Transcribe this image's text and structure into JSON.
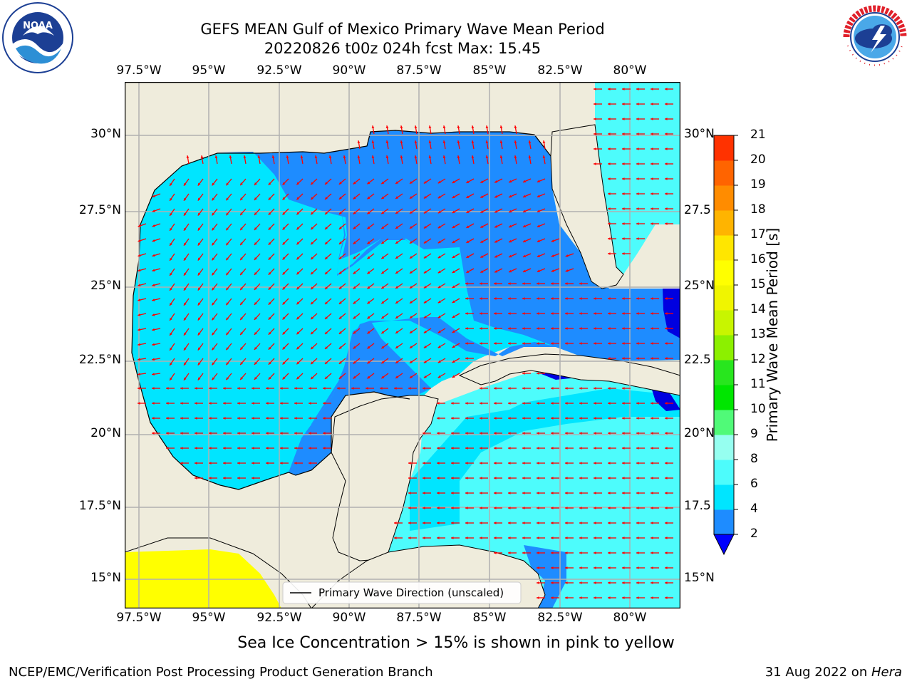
{
  "header": {
    "title_line1": "GEFS MEAN Gulf of Mexico Primary Wave Mean Period",
    "title_line2": "20220826 t00z 024h fcst   Max: 15.45"
  },
  "logos": {
    "noaa_text": "NOAA",
    "noaa_ring": "NATIONAL OCEANIC AND ATMOSPHERIC ADMINISTRATION · U.S. DEPARTMENT OF COMMERCE",
    "nws_ring": "NATIONAL WEATHER SERVICE"
  },
  "map": {
    "lon_labels": [
      "97.5°W",
      "95°W",
      "92.5°W",
      "90°W",
      "87.5°W",
      "85°W",
      "82.5°W",
      "80°W"
    ],
    "lat_labels_left": [
      "30°N",
      "27.5°N",
      "25°N",
      "22.5°N",
      "20°N",
      "17.5°N",
      "15°N"
    ],
    "lat_labels_right": [
      "30°N",
      "27.5",
      "25°N",
      "22.5",
      "20°N",
      "17.5",
      "15°N"
    ],
    "legend_label": "Primary Wave Direction (unscaled)",
    "colors": {
      "land": "#efecdc",
      "ocean_2_4": "#1e8cff",
      "ocean_4_6": "#00e5ff",
      "ocean_6_8": "#4dfcfc",
      "ocean_lt2": "#0000e0",
      "ice": "#ffff00",
      "arrow": "#ff0000",
      "grid": "#b0b0b0"
    }
  },
  "colorbar": {
    "label": "Primary Wave Mean Period [s]",
    "ticks": [
      "2",
      "4",
      "6",
      "8",
      "9",
      "10",
      "11",
      "12",
      "13",
      "14",
      "15",
      "16",
      "17",
      "18",
      "19",
      "20",
      "21"
    ],
    "colors": [
      "#1e8cff",
      "#00e5ff",
      "#4dfcfc",
      "#96fff0",
      "#50fa78",
      "#00e600",
      "#28e61e",
      "#8cf000",
      "#c8f500",
      "#f0f500",
      "#ffff00",
      "#ffe600",
      "#ffb400",
      "#ff8c00",
      "#ff6400",
      "#ff3200"
    ],
    "under_color": "#0000ff"
  },
  "footer": {
    "note": "Sea Ice Concentration > 15% is shown in pink to yellow",
    "left": "NCEP/EMC/Verification Post Processing Product Generation Branch",
    "right_date": "31 Aug 2022 on ",
    "right_host": "Hera"
  }
}
